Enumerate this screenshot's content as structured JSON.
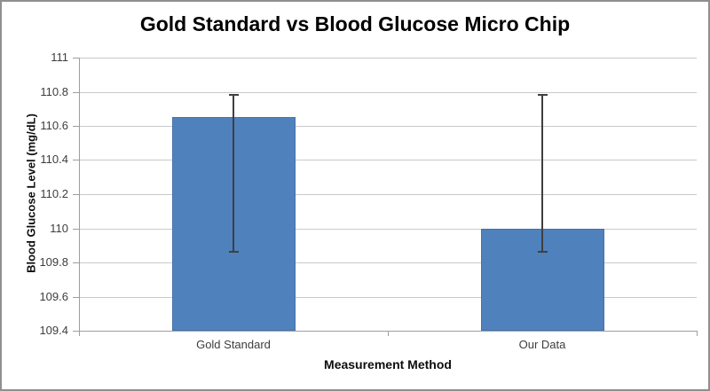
{
  "window": {
    "background": "#ffffff",
    "border_color": "#8f8f8f"
  },
  "chart_data": {
    "type": "bar",
    "title": "Gold Standard vs Blood Glucose Micro Chip",
    "xlabel": "Measurement Method",
    "ylabel": "Blood Glucose Level (mg/dL)",
    "categories": [
      "Gold Standard",
      "Our Data"
    ],
    "values": [
      110.65,
      110.0
    ],
    "error_bars": [
      {
        "low": 109.86,
        "high": 110.78
      },
      {
        "low": 109.86,
        "high": 110.78
      }
    ],
    "ylim": [
      109.4,
      111.0
    ],
    "ytick_interval": 0.2,
    "ytick_labels": [
      "111",
      "110.8",
      "110.6",
      "110.4",
      "110.2",
      "110",
      "109.8",
      "109.6",
      "109.4"
    ],
    "grid": true,
    "legend_position": "none",
    "bar_color": "#4f81bd",
    "gridline_color": "#c9c9c9",
    "axis_color": "#9e9e9e",
    "error_bar_color": "#3f3f3f",
    "tick_label_color": "#3d3d3d",
    "title_color": "#000000"
  }
}
